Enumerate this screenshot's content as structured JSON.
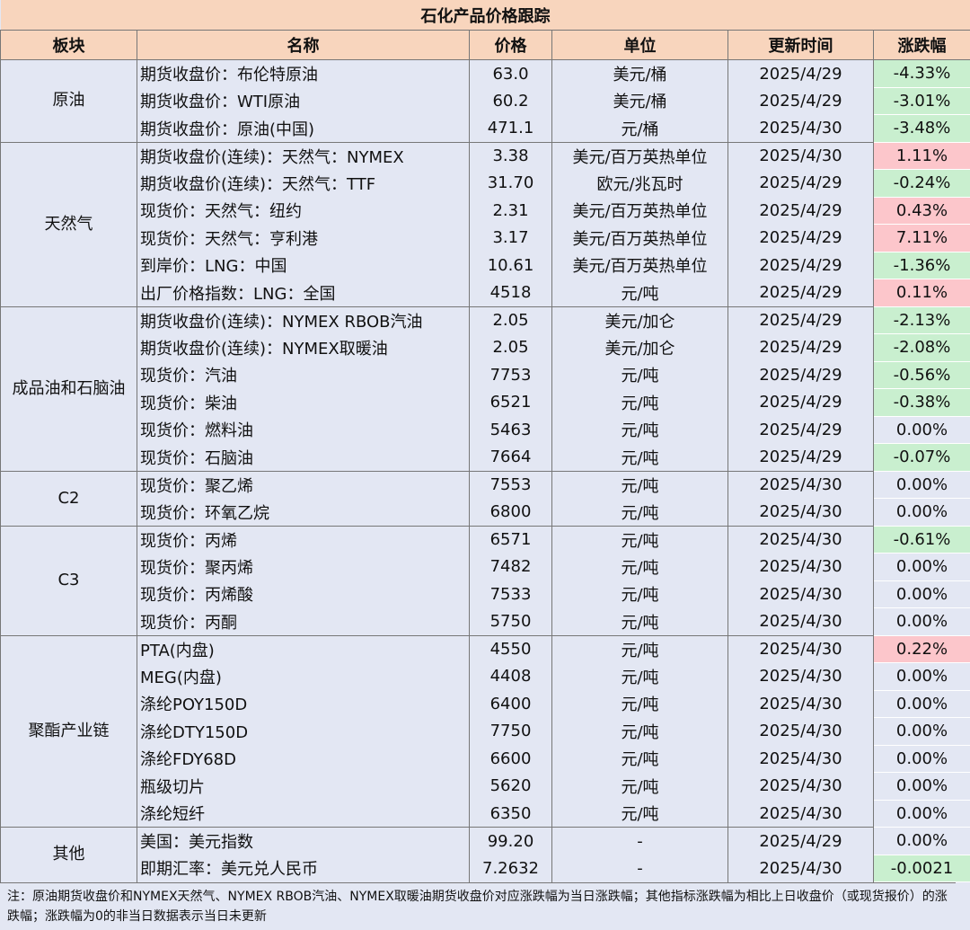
{
  "title": "石化产品价格跟踪",
  "columns": [
    "板块",
    "名称",
    "价格",
    "单位",
    "更新时间",
    "涨跌幅"
  ],
  "groups": [
    {
      "name": "原油",
      "rows": [
        [
          "期货收盘价：布伦特原油",
          "63.0",
          "美元/桶",
          "2025/4/29",
          "-4.33%"
        ],
        [
          "期货收盘价：WTI原油",
          "60.2",
          "美元/桶",
          "2025/4/29",
          "-3.01%"
        ],
        [
          "期货收盘价：原油(中国)",
          "471.1",
          "元/桶",
          "2025/4/30",
          "-3.48%"
        ]
      ]
    },
    {
      "name": "天然气",
      "rows": [
        [
          "期货收盘价(连续)：天然气：NYMEX",
          "3.38",
          "美元/百万英热单位",
          "2025/4/30",
          "1.11%"
        ],
        [
          "期货收盘价(连续)：天然气：TTF",
          "31.70",
          "欧元/兆瓦时",
          "2025/4/29",
          "-0.24%"
        ],
        [
          "现货价：天然气：纽约",
          "2.31",
          "美元/百万英热单位",
          "2025/4/29",
          "0.43%"
        ],
        [
          "现货价：天然气：亨利港",
          "3.17",
          "美元/百万英热单位",
          "2025/4/29",
          "7.11%"
        ],
        [
          "到岸价：LNG：中国",
          "10.61",
          "美元/百万英热单位",
          "2025/4/29",
          "-1.36%"
        ],
        [
          "出厂价格指数：LNG：全国",
          "4518",
          "元/吨",
          "2025/4/29",
          "0.11%"
        ]
      ]
    },
    {
      "name": "成品油和石脑油",
      "rows": [
        [
          "期货收盘价(连续)：NYMEX RBOB汽油",
          "2.05",
          "美元/加仑",
          "2025/4/29",
          "-2.13%"
        ],
        [
          "期货收盘价(连续)：NYMEX取暖油",
          "2.05",
          "美元/加仑",
          "2025/4/29",
          "-2.08%"
        ],
        [
          "现货价：汽油",
          "7753",
          "元/吨",
          "2025/4/29",
          "-0.56%"
        ],
        [
          "现货价：柴油",
          "6521",
          "元/吨",
          "2025/4/29",
          "-0.38%"
        ],
        [
          "现货价：燃料油",
          "5463",
          "元/吨",
          "2025/4/29",
          "0.00%"
        ],
        [
          "现货价：石脑油",
          "7664",
          "元/吨",
          "2025/4/29",
          "-0.07%"
        ]
      ]
    },
    {
      "name": "C2",
      "rows": [
        [
          "现货价：聚乙烯",
          "7553",
          "元/吨",
          "2025/4/30",
          "0.00%"
        ],
        [
          "现货价：环氧乙烷",
          "6800",
          "元/吨",
          "2025/4/30",
          "0.00%"
        ]
      ]
    },
    {
      "name": "C3",
      "rows": [
        [
          "现货价：丙烯",
          "6571",
          "元/吨",
          "2025/4/30",
          "-0.61%"
        ],
        [
          "现货价：聚丙烯",
          "7482",
          "元/吨",
          "2025/4/30",
          "0.00%"
        ],
        [
          "现货价：丙烯酸",
          "7533",
          "元/吨",
          "2025/4/30",
          "0.00%"
        ],
        [
          "现货价：丙酮",
          "5750",
          "元/吨",
          "2025/4/30",
          "0.00%"
        ]
      ]
    },
    {
      "name": "聚酯产业链",
      "rows": [
        [
          "PTA(内盘)",
          "4550",
          "元/吨",
          "2025/4/30",
          "0.22%"
        ],
        [
          "MEG(内盘)",
          "4408",
          "元/吨",
          "2025/4/30",
          "0.00%"
        ],
        [
          "涤纶POY150D",
          "6400",
          "元/吨",
          "2025/4/30",
          "0.00%"
        ],
        [
          "涤纶DTY150D",
          "7750",
          "元/吨",
          "2025/4/30",
          "0.00%"
        ],
        [
          "涤纶FDY68D",
          "6600",
          "元/吨",
          "2025/4/30",
          "0.00%"
        ],
        [
          "瓶级切片",
          "5620",
          "元/吨",
          "2025/4/30",
          "0.00%"
        ],
        [
          "涤纶短纤",
          "6350",
          "元/吨",
          "2025/4/30",
          "0.00%"
        ]
      ]
    },
    {
      "name": "其他",
      "rows": [
        [
          "美国：美元指数",
          "99.20",
          "-",
          "2025/4/29",
          "0.00%"
        ],
        [
          "即期汇率：美元兑人民币",
          "7.2632",
          "-",
          "2025/4/30",
          "-0.0021"
        ]
      ]
    }
  ],
  "note": "注：原油期货收盘价和NYMEX天然气、NYMEX RBOB汽油、NYMEX取暖油期货收盘价对应涨跌幅为当日涨跌幅；其他指标涨跌幅为相比上日收盘价（或现货报价）的涨跌幅；涨跌幅为0的非当日数据表示当日未更新"
}
